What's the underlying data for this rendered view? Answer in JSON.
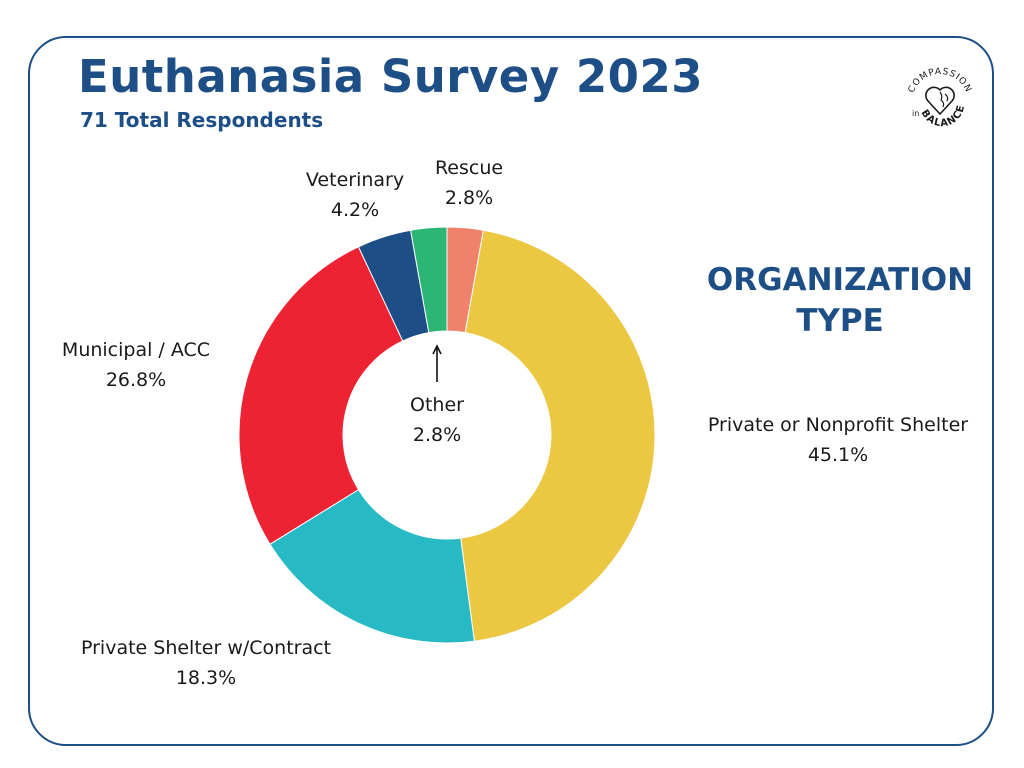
{
  "title": "Euthanasia Survey 2023",
  "subtitle": "71 Total Respondents",
  "side_heading": {
    "line1": "ORGANIZATION",
    "line2": "TYPE"
  },
  "logo": {
    "top_text": "COMPASSION",
    "in_text": "in",
    "bottom_text": "BALANCE",
    "icon": "heart-brain-icon"
  },
  "colors": {
    "brand": "#1d4f86",
    "Rescue": "#f0816a",
    "Private or Nonprofit Shelter": "#ebc742",
    "Private Shelter w/Contract": "#27bac4",
    "Municipal / ACC": "#ed2334",
    "Veterinary": "#1d4f86",
    "Other": "#2bb673"
  },
  "chart_data": {
    "type": "pie",
    "donut": true,
    "title": "ORGANIZATION TYPE",
    "slices": [
      {
        "label": "Rescue",
        "value": 2.8,
        "display": "2.8%"
      },
      {
        "label": "Private or Nonprofit Shelter",
        "value": 45.1,
        "display": "45.1%"
      },
      {
        "label": "Private Shelter w/Contract",
        "value": 18.3,
        "display": "18.3%"
      },
      {
        "label": "Municipal / ACC",
        "value": 26.8,
        "display": "26.8%"
      },
      {
        "label": "Veterinary",
        "value": 4.2,
        "display": "4.2%"
      },
      {
        "label": "Other",
        "value": 2.8,
        "display": "2.8%"
      }
    ]
  }
}
